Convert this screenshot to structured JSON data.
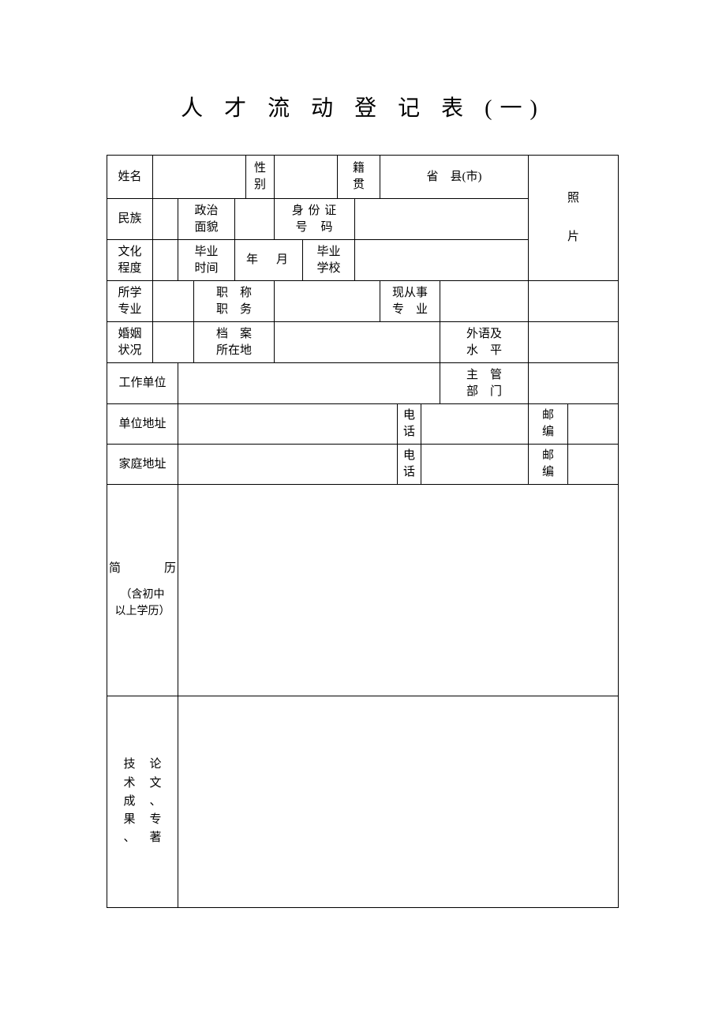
{
  "title": "人 才 流 动 登 记 表 (一)",
  "labels": {
    "name": "姓名",
    "gender": "性\n别",
    "nativePlace": "籍\n贯",
    "nativePlaceValue": "省　县(市)",
    "ethnicity": "民族",
    "political": "政治\n面貌",
    "idNumber": "身 份 证\n号　码",
    "education": "文化\n程度",
    "gradTime": "毕业\n时间",
    "gradTimeValue": "年　月",
    "gradSchool": "毕业\n学校",
    "major": "所学\n专业",
    "jobTitle": "职　称\n职　务",
    "currentMajor": "现从事\n专　业",
    "marital": "婚姻\n状况",
    "archive": "档　案\n所在地",
    "foreignLang": "外语及\n水　平",
    "workUnit": "工作单位",
    "deptInCharge": "主　管\n部　门",
    "unitAddress": "单位地址",
    "homeAddress": "家庭地址",
    "phone": "电\n话",
    "postcode": "邮\n编",
    "photo1": "照",
    "photo2": "片",
    "resumeMain": "简　　历",
    "resumeSub": "（含初中\n以上学历）",
    "techCol1": "技术成果、",
    "techCol2": "论文、专著"
  },
  "values": {
    "name": "",
    "gender": "",
    "ethnicity": "",
    "political": "",
    "idNumber": "",
    "education": "",
    "gradSchool": "",
    "major": "",
    "jobTitle": "",
    "currentMajor": "",
    "marital": "",
    "archive": "",
    "foreignLang": "",
    "workUnit": "",
    "deptInCharge": "",
    "unitAddress": "",
    "unitPhone": "",
    "unitPostcode": "",
    "homeAddress": "",
    "homePhone": "",
    "homePostcode": "",
    "resume": "",
    "tech": ""
  },
  "style": {
    "pageWidth": 920,
    "pageHeight": 1302,
    "tableWidth": 648,
    "tableTop": 196,
    "tableLeft": 135,
    "borderColor": "#000000",
    "backgroundColor": "#ffffff",
    "titleFontSize": 28,
    "cellFontSize": 15,
    "fontFamily": "SimSun"
  }
}
